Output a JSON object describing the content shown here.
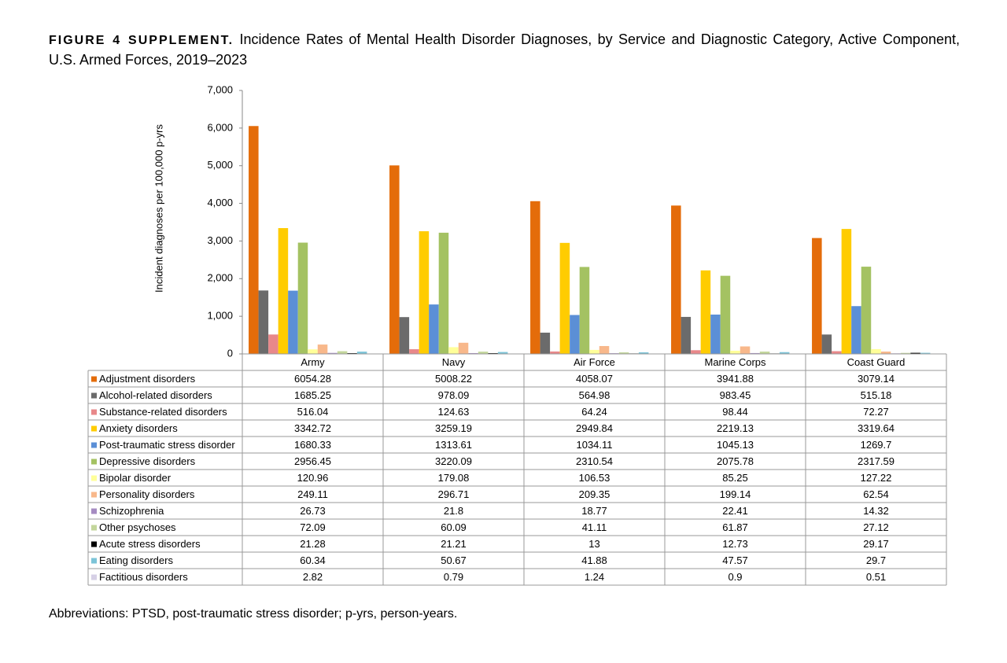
{
  "chart_data": {
    "type": "bar",
    "title_prefix": "FIGURE 4 SUPPLEMENT.",
    "title": "Incidence Rates of Mental Health Disorder Diagnoses, by Service and Diagnostic Category, Active Component, U.S. Armed Forces, 2019–2023",
    "y_label": "Incident diagnoses per 100,000 p-yrs",
    "footnote": "Abbreviations: PTSD, post-traumatic stress disorder; p-yrs, person-years.",
    "categories": [
      "Army",
      "Navy",
      "Air Force",
      "Marine Corps",
      "Coast Guard"
    ],
    "ylim": [
      0,
      7000
    ],
    "yticks": [
      0,
      {
        "value": 1000,
        "label": "1,000"
      },
      {
        "value": 2000,
        "label": "2,000"
      },
      {
        "value": 3000,
        "label": "3,000"
      },
      {
        "value": 4000,
        "label": "4,000"
      },
      {
        "value": 5000,
        "label": "5,000"
      },
      {
        "value": 6000,
        "label": "6,000"
      },
      {
        "value": 7000,
        "label": "7,000"
      }
    ],
    "grid": false,
    "series": [
      {
        "name": "Adjustment disorders",
        "color": "#e46c0a",
        "values": [
          6054.28,
          5008.22,
          4058.07,
          3941.88,
          3079.14
        ]
      },
      {
        "name": "Alcohol-related disorders",
        "color": "#6b6b6b",
        "values": [
          1685.25,
          978.09,
          564.98,
          983.45,
          515.18
        ]
      },
      {
        "name": "Substance-related disorders",
        "color": "#e8888a",
        "values": [
          516.04,
          124.63,
          64.24,
          98.44,
          72.27
        ]
      },
      {
        "name": "Anxiety disorders",
        "color": "#ffcc00",
        "values": [
          3342.72,
          3259.19,
          2949.84,
          2219.13,
          3319.64
        ]
      },
      {
        "name": "Post-traumatic stress disorder",
        "color": "#5b8fd6",
        "values": [
          1680.33,
          1313.61,
          1034.11,
          1045.13,
          1269.7
        ]
      },
      {
        "name": "Depressive disorders",
        "color": "#a4c262",
        "values": [
          2956.45,
          3220.09,
          2310.54,
          2075.78,
          2317.59
        ]
      },
      {
        "name": "Bipolar disorder",
        "color": "#ffff99",
        "values": [
          120.96,
          179.08,
          106.53,
          85.25,
          127.22
        ]
      },
      {
        "name": "Personality disorders",
        "color": "#f8b88b",
        "values": [
          249.11,
          296.71,
          209.35,
          199.14,
          62.54
        ]
      },
      {
        "name": "Schizophrenia",
        "color": "#a58bc2",
        "values": [
          26.73,
          21.8,
          18.77,
          22.41,
          14.32
        ]
      },
      {
        "name": "Other psychoses",
        "color": "#c3d69b",
        "values": [
          72.09,
          60.09,
          41.11,
          61.87,
          27.12
        ]
      },
      {
        "name": "Acute stress disorders",
        "color": "#000000",
        "values": [
          21.28,
          21.21,
          13,
          12.73,
          29.17
        ]
      },
      {
        "name": "Eating disorders",
        "color": "#7cc4d8",
        "values": [
          60.34,
          50.67,
          41.88,
          47.57,
          29.7
        ]
      },
      {
        "name": "Factitious disorders",
        "color": "#d6d0e6",
        "values": [
          2.82,
          0.79,
          1.24,
          0.9,
          0.51
        ]
      }
    ]
  }
}
